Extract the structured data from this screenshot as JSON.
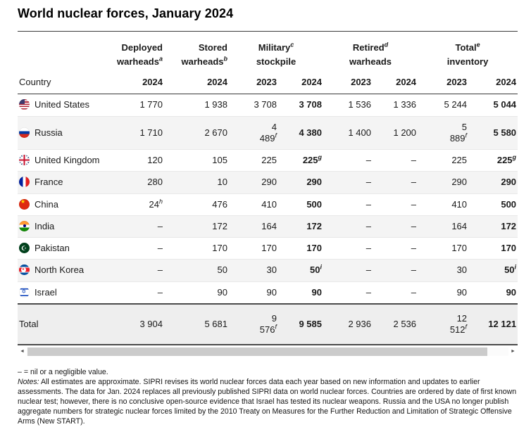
{
  "title": "World nuclear forces, January 2024",
  "chart_data": {
    "type": "table",
    "title": "World nuclear forces, January 2024",
    "row_header": "Country",
    "column_groups": [
      {
        "label": "Deployed\nwarheads^a",
        "years": [
          "2024"
        ]
      },
      {
        "label": "Stored\nwarheads^b",
        "years": [
          "2024"
        ]
      },
      {
        "label": "Military^c\nstockpile",
        "years": [
          "2023",
          "2024"
        ]
      },
      {
        "label": "Retired^d\nwarheads",
        "years": [
          "2023",
          "2024"
        ]
      },
      {
        "label": "Total^e\ninventory",
        "years": [
          "2023",
          "2024"
        ]
      }
    ],
    "rows": [
      {
        "country": "United States",
        "flag": "us",
        "cells": [
          "1 770",
          "1 938",
          "3 708",
          "3 708",
          "1 536",
          "1 336",
          "5 244",
          "5 044"
        ]
      },
      {
        "country": "Russia",
        "flag": "ru",
        "cells": [
          "1 710",
          "2 670",
          "4\n489^f",
          "4 380",
          "1 400",
          "1 200",
          "5\n889^f",
          "5 580"
        ]
      },
      {
        "country": "United Kingdom",
        "flag": "gb",
        "cells": [
          "120",
          "105",
          "225",
          "225^g",
          "–",
          "–",
          "225",
          "225^g"
        ]
      },
      {
        "country": "France",
        "flag": "fr",
        "cells": [
          "280",
          "10",
          "290",
          "290",
          "–",
          "–",
          "290",
          "290"
        ]
      },
      {
        "country": "China",
        "flag": "cn",
        "cells": [
          "24^h",
          "476",
          "410",
          "500",
          "–",
          "–",
          "410",
          "500"
        ]
      },
      {
        "country": "India",
        "flag": "in",
        "cells": [
          "–",
          "172",
          "164",
          "172",
          "–",
          "–",
          "164",
          "172"
        ]
      },
      {
        "country": "Pakistan",
        "flag": "pk",
        "cells": [
          "–",
          "170",
          "170",
          "170",
          "–",
          "–",
          "170",
          "170"
        ]
      },
      {
        "country": "North Korea",
        "flag": "kp",
        "cells": [
          "–",
          "50",
          "30",
          "50^i",
          "–",
          "–",
          "30",
          "50^i"
        ]
      },
      {
        "country": "Israel",
        "flag": "il",
        "cells": [
          "–",
          "90",
          "90",
          "90",
          "–",
          "–",
          "90",
          "90"
        ]
      }
    ],
    "total_row": {
      "label": "Total",
      "cells": [
        "3 904",
        "5 681",
        "9\n576^f",
        "9 585",
        "2 936",
        "2 536",
        "12\n512^f",
        "12 121"
      ]
    },
    "bold_column_indices": [
      3,
      7
    ]
  },
  "scrollbar": {
    "left_arrow": "◄",
    "right_arrow": "►"
  },
  "footnotes": {
    "nil_note": "– = nil or a negligible value.",
    "notes_label": "Notes:",
    "notes_text": " All estimates are approximate. SIPRI revises its world nuclear forces data each year based on new information and updates to earlier assessments. The data for Jan. 2024 replaces all previously published SIPRI data on world nuclear forces. Countries are ordered by date of first known nuclear test; however, there is no conclusive open-source evidence that Israel has tested its nuclear weapons. Russia and the USA no longer publish aggregate numbers for strategic nuclear forces limited by the 2010 Treaty on Measures for the Further Reduction and Limitation of Strategic Offensive Arms (New START)."
  },
  "colors": {
    "text": "#1a1a1a",
    "stripe": "#f4f4f4",
    "total_bg": "#eeeeee",
    "border_dark": "#3a3a3a",
    "border_dark2": "#4a4a4a",
    "border_light": "#e8e8e8",
    "scroll_thumb": "#cbcbcb"
  }
}
